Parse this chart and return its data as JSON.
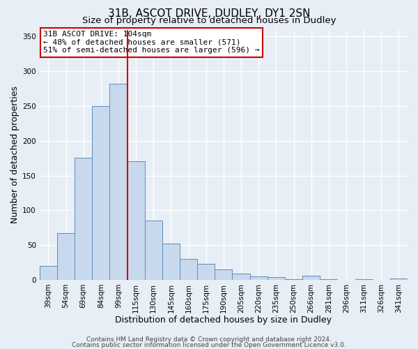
{
  "title": "31B, ASCOT DRIVE, DUDLEY, DY1 2SN",
  "subtitle": "Size of property relative to detached houses in Dudley",
  "xlabel": "Distribution of detached houses by size in Dudley",
  "ylabel": "Number of detached properties",
  "bar_labels": [
    "39sqm",
    "54sqm",
    "69sqm",
    "84sqm",
    "99sqm",
    "115sqm",
    "130sqm",
    "145sqm",
    "160sqm",
    "175sqm",
    "190sqm",
    "205sqm",
    "220sqm",
    "235sqm",
    "250sqm",
    "266sqm",
    "281sqm",
    "296sqm",
    "311sqm",
    "326sqm",
    "341sqm"
  ],
  "bar_values": [
    20,
    67,
    176,
    250,
    282,
    171,
    85,
    52,
    30,
    23,
    15,
    9,
    5,
    4,
    1,
    6,
    1,
    0,
    1,
    0,
    2
  ],
  "bar_color": "#c9d9ed",
  "bar_edge_color": "#5b8db8",
  "vline_x": 4.5,
  "vline_color": "#cc0000",
  "annotation_text": "31B ASCOT DRIVE: 104sqm\n← 48% of detached houses are smaller (571)\n51% of semi-detached houses are larger (596) →",
  "annotation_box_color": "#ffffff",
  "annotation_box_edge_color": "#cc0000",
  "ylim": [
    0,
    360
  ],
  "yticks": [
    0,
    50,
    100,
    150,
    200,
    250,
    300,
    350
  ],
  "footer1": "Contains HM Land Registry data © Crown copyright and database right 2024.",
  "footer2": "Contains public sector information licensed under the Open Government Licence v3.0.",
  "background_color": "#e8eef5",
  "plot_bg_color": "#e8eef5",
  "grid_color": "#ffffff",
  "title_fontsize": 11,
  "subtitle_fontsize": 9.5,
  "axis_label_fontsize": 9,
  "tick_fontsize": 7.5,
  "footer_fontsize": 6.5,
  "annot_fontsize": 8
}
